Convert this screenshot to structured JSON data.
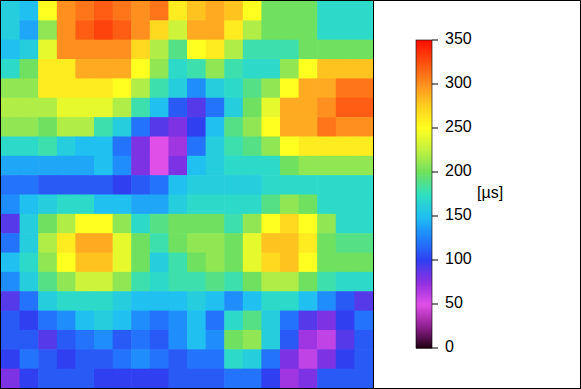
{
  "chart_data": {
    "type": "heatmap",
    "cells": [
      [
        160,
        150,
        250,
        300,
        310,
        320,
        310,
        300,
        310,
        260,
        280,
        290,
        280,
        250,
        200,
        200,
        200,
        170,
        170,
        170
      ],
      [
        160,
        140,
        210,
        300,
        320,
        330,
        320,
        300,
        270,
        230,
        290,
        290,
        260,
        220,
        200,
        200,
        200,
        170,
        170,
        170
      ],
      [
        150,
        160,
        240,
        300,
        300,
        300,
        300,
        270,
        220,
        190,
        250,
        260,
        220,
        180,
        180,
        180,
        200,
        200,
        200,
        200
      ],
      [
        170,
        200,
        260,
        260,
        290,
        290,
        290,
        250,
        210,
        170,
        180,
        210,
        180,
        170,
        170,
        210,
        250,
        280,
        280,
        280
      ],
      [
        210,
        210,
        260,
        260,
        260,
        260,
        250,
        220,
        180,
        160,
        130,
        160,
        170,
        190,
        210,
        250,
        290,
        290,
        310,
        310
      ],
      [
        220,
        220,
        220,
        240,
        240,
        240,
        220,
        180,
        150,
        110,
        90,
        120,
        160,
        200,
        240,
        290,
        290,
        300,
        320,
        320
      ],
      [
        210,
        210,
        200,
        220,
        220,
        180,
        160,
        120,
        90,
        80,
        100,
        150,
        190,
        210,
        250,
        290,
        290,
        310,
        300,
        300
      ],
      [
        170,
        170,
        180,
        160,
        150,
        150,
        120,
        80,
        50,
        70,
        120,
        160,
        180,
        190,
        210,
        250,
        260,
        260,
        260,
        260
      ],
      [
        140,
        140,
        140,
        140,
        140,
        150,
        130,
        80,
        50,
        80,
        150,
        160,
        170,
        170,
        170,
        200,
        210,
        210,
        210,
        210
      ],
      [
        120,
        120,
        110,
        110,
        110,
        110,
        100,
        110,
        120,
        150,
        160,
        160,
        160,
        160,
        170,
        170,
        170,
        170,
        170,
        170
      ],
      [
        130,
        150,
        160,
        170,
        170,
        150,
        150,
        140,
        140,
        160,
        170,
        170,
        170,
        170,
        190,
        210,
        200,
        170,
        170,
        170
      ],
      [
        90,
        160,
        200,
        220,
        250,
        250,
        210,
        170,
        190,
        200,
        200,
        200,
        180,
        210,
        250,
        270,
        250,
        210,
        170,
        170
      ],
      [
        120,
        160,
        220,
        260,
        290,
        290,
        240,
        200,
        180,
        200,
        210,
        210,
        200,
        240,
        280,
        280,
        260,
        200,
        190,
        190
      ],
      [
        150,
        170,
        210,
        250,
        280,
        280,
        240,
        200,
        160,
        180,
        200,
        210,
        200,
        240,
        270,
        280,
        250,
        200,
        200,
        200
      ],
      [
        130,
        160,
        190,
        210,
        230,
        230,
        210,
        180,
        170,
        180,
        180,
        190,
        180,
        200,
        220,
        220,
        200,
        180,
        170,
        170
      ],
      [
        90,
        120,
        160,
        170,
        170,
        170,
        160,
        150,
        150,
        150,
        160,
        150,
        130,
        150,
        170,
        170,
        150,
        130,
        110,
        90
      ],
      [
        110,
        100,
        120,
        130,
        150,
        160,
        150,
        130,
        120,
        130,
        150,
        120,
        170,
        190,
        160,
        120,
        90,
        80,
        100,
        120
      ],
      [
        110,
        110,
        90,
        110,
        120,
        130,
        110,
        120,
        110,
        130,
        150,
        130,
        200,
        210,
        160,
        110,
        70,
        60,
        90,
        110
      ],
      [
        100,
        120,
        110,
        100,
        110,
        110,
        120,
        130,
        120,
        110,
        120,
        120,
        170,
        160,
        120,
        80,
        60,
        80,
        100,
        110
      ],
      [
        80,
        100,
        110,
        110,
        110,
        100,
        100,
        100,
        100,
        110,
        110,
        110,
        120,
        120,
        100,
        70,
        80,
        110,
        110,
        110
      ]
    ],
    "zlim": [
      0,
      350
    ],
    "zticks": [
      0,
      50,
      100,
      150,
      200,
      250,
      300,
      350
    ],
    "colorbar_label": "[µs]"
  }
}
